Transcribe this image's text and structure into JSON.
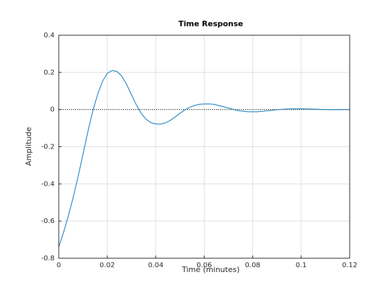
{
  "chart_data": {
    "type": "line",
    "title": "Time Response",
    "x_label": "Time (minutes)",
    "y_label": "Amplitude",
    "x": [
      0,
      0.002,
      0.004,
      0.006,
      0.008,
      0.01,
      0.012,
      0.014,
      0.016,
      0.018,
      0.02,
      0.022,
      0.024,
      0.026,
      0.028,
      0.03,
      0.032,
      0.034,
      0.036,
      0.038,
      0.04,
      0.042,
      0.044,
      0.046,
      0.048,
      0.05,
      0.052,
      0.054,
      0.056,
      0.058,
      0.06,
      0.062,
      0.064,
      0.066,
      0.07,
      0.074,
      0.078,
      0.082,
      0.086,
      0.09,
      0.094,
      0.1,
      0.106,
      0.112,
      0.12
    ],
    "values": [
      -0.74,
      -0.66,
      -0.57,
      -0.47,
      -0.36,
      -0.24,
      -0.12,
      -0.01,
      0.08,
      0.15,
      0.195,
      0.21,
      0.205,
      0.18,
      0.135,
      0.08,
      0.025,
      -0.02,
      -0.052,
      -0.07,
      -0.078,
      -0.078,
      -0.072,
      -0.058,
      -0.04,
      -0.02,
      -0.002,
      0.012,
      0.022,
      0.028,
      0.03,
      0.03,
      0.028,
      0.022,
      0.008,
      -0.006,
      -0.012,
      -0.012,
      -0.007,
      -0.001,
      0.003,
      0.004,
      0.002,
      -0.001,
      0
    ],
    "color": "#0072bd",
    "reference_line": 0,
    "xlim": [
      0,
      0.12
    ],
    "xticks": [
      0,
      0.02,
      0.04,
      0.06,
      0.08,
      0.1,
      0.12
    ],
    "ylim": [
      -0.8,
      0.4
    ],
    "yticks": [
      -0.8,
      -0.6,
      -0.4,
      -0.2,
      0,
      0.2,
      0.4
    ],
    "grid": true
  }
}
